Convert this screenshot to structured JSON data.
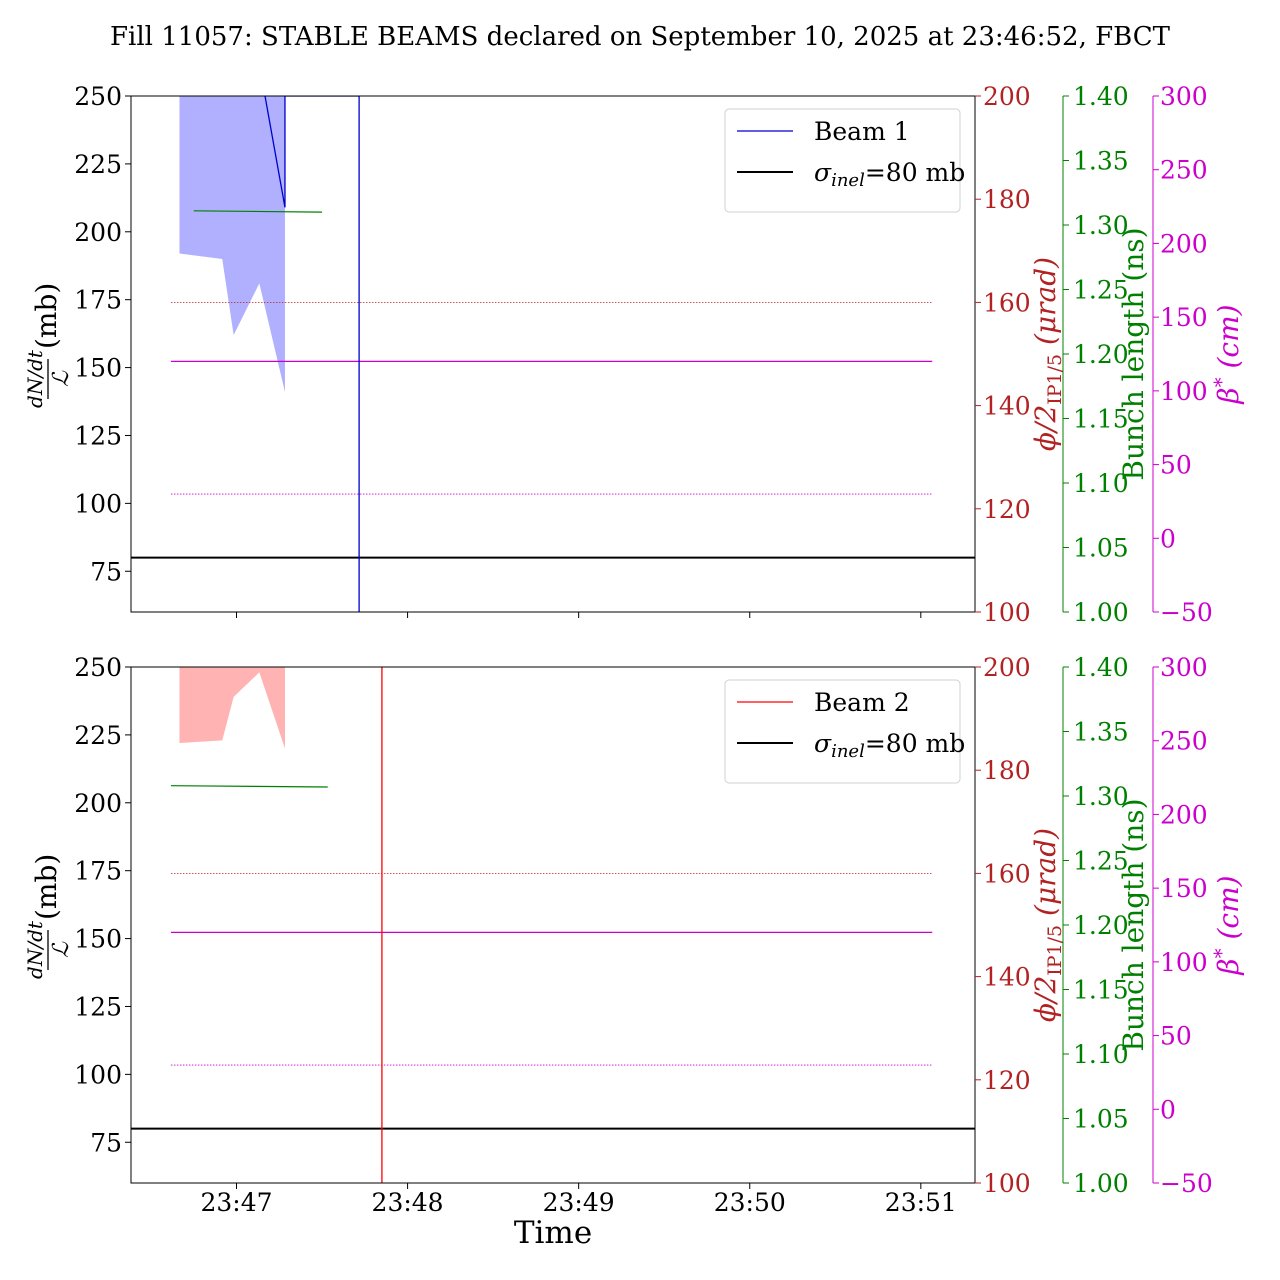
{
  "chart_data": {
    "type": "line",
    "title": "Fill 11057: STABLE BEAMS declared on September 10, 2025 at 23:46:52, FBCT",
    "xlabel": "Time",
    "x_ticks": [
      "23:47",
      "23:48",
      "23:49",
      "23:50",
      "23:51"
    ],
    "x_range": [
      "23:46:23",
      "23:51:19"
    ],
    "colors": {
      "beam1": "#0000cc",
      "beam1_fill": "#b0b0ff",
      "beam2": "#ff0000",
      "beam2_fill": "#ffb3b3",
      "sigma_inel": "#000000",
      "crossing_angle": "#b22222",
      "bunch_length": "#008000",
      "beta_star": "#cc00cc"
    },
    "axes": {
      "left": {
        "label_num": "dN/dt",
        "label_den": "ℒ",
        "label_unit": "(mb)",
        "ylim": [
          60,
          250
        ],
        "ticks": [
          "75",
          "100",
          "125",
          "150",
          "175",
          "200",
          "225",
          "250"
        ]
      },
      "crossing": {
        "label": "ϕ/2",
        "label_sub": "IP1/5",
        "label_unit": "(μrad)",
        "ylim": [
          100,
          200
        ],
        "ticks": [
          "100",
          "120",
          "140",
          "160",
          "180",
          "200"
        ]
      },
      "bunch": {
        "label": "Bunch length (ns)",
        "ylim": [
          1.0,
          1.4
        ],
        "ticks": [
          "1.00",
          "1.05",
          "1.10",
          "1.15",
          "1.20",
          "1.25",
          "1.30",
          "1.35",
          "1.40"
        ]
      },
      "beta": {
        "label": "β",
        "label_sup": "*",
        "label_unit": "(cm)",
        "ylim": [
          -50,
          300
        ],
        "ticks": [
          "−50",
          "0",
          "50",
          "100",
          "150",
          "200",
          "250",
          "300"
        ]
      }
    },
    "panels": [
      {
        "legend": {
          "beam": "Beam 1",
          "sigma_sym": "σ",
          "sigma_sub": "inel",
          "sigma_rest": "=80 mb"
        },
        "sigma_inel_mb": 80,
        "band": {
          "x": [
            "23:46:40",
            "23:46:55",
            "23:46:59",
            "23:47:08",
            "23:47:17"
          ],
          "lower": [
            192,
            190,
            162,
            181,
            141
          ],
          "upper": [
            250,
            250,
            250,
            250,
            250
          ]
        },
        "beam_line": {
          "x": [
            "23:47:10",
            "23:47:17",
            "23:47:17",
            "23:47:43",
            "23:47:43"
          ],
          "y": [
            250,
            209,
            250,
            250,
            60
          ]
        },
        "bunch_length": {
          "x": [
            "23:46:45",
            "23:47:30"
          ],
          "y": [
            1.311,
            1.31
          ]
        },
        "crossing_angle": {
          "x": [
            "23:46:37",
            "23:51:04"
          ],
          "y": [
            160,
            160
          ]
        },
        "beta_star": {
          "x": [
            "23:46:37",
            "23:51:04"
          ],
          "y": [
            120,
            120
          ]
        },
        "beta_star_dotted": {
          "x": [
            "23:46:37",
            "23:51:04"
          ],
          "y": [
            30,
            30
          ]
        }
      },
      {
        "legend": {
          "beam": "Beam 2",
          "sigma_sym": "σ",
          "sigma_sub": "inel",
          "sigma_rest": "=80 mb"
        },
        "sigma_inel_mb": 80,
        "band": {
          "x": [
            "23:46:40",
            "23:46:55",
            "23:46:59",
            "23:47:08",
            "23:47:17"
          ],
          "lower": [
            222,
            223,
            239,
            248,
            220
          ],
          "upper": [
            250,
            250,
            250,
            250,
            250
          ]
        },
        "beam_line": {
          "x": [
            "23:47:51",
            "23:47:51"
          ],
          "y": [
            250,
            60
          ]
        },
        "bunch_length": {
          "x": [
            "23:46:37",
            "23:47:32"
          ],
          "y": [
            1.308,
            1.307
          ]
        },
        "crossing_angle": {
          "x": [
            "23:46:37",
            "23:51:04"
          ],
          "y": [
            160,
            160
          ]
        },
        "beta_star": {
          "x": [
            "23:46:37",
            "23:51:04"
          ],
          "y": [
            120,
            120
          ]
        },
        "beta_star_dotted": {
          "x": [
            "23:46:37",
            "23:51:04"
          ],
          "y": [
            30,
            30
          ]
        }
      }
    ]
  }
}
